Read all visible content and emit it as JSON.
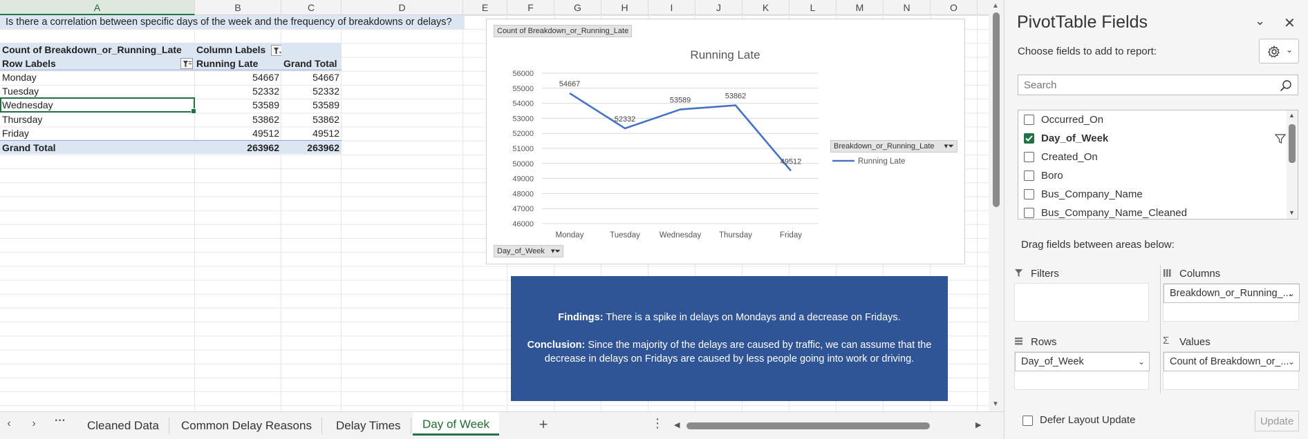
{
  "sheet": {
    "columns": [
      "A",
      "B",
      "C",
      "D",
      "E",
      "F",
      "G",
      "H",
      "I",
      "J",
      "K",
      "L",
      "M",
      "N",
      "O"
    ],
    "active_column": "A",
    "question": "Is there a correlation between specific days of the week and the frequency of breakdowns or delays?",
    "pivot_table": {
      "value_field": "Count of Breakdown_or_Running_Late",
      "column_labels": "Column Labels",
      "row_labels": "Row Labels",
      "col_running_late": "Running Late",
      "col_grand_total": "Grand Total",
      "rows": [
        {
          "label": "Monday",
          "running_late": "54667",
          "grand_total": "54667"
        },
        {
          "label": "Tuesday",
          "running_late": "52332",
          "grand_total": "52332"
        },
        {
          "label": "Wednesday",
          "running_late": "53589",
          "grand_total": "53589"
        },
        {
          "label": "Thursday",
          "running_late": "53862",
          "grand_total": "53862"
        },
        {
          "label": "Friday",
          "running_late": "49512",
          "grand_total": "49512"
        }
      ],
      "total_label": "Grand Total",
      "total_running_late": "263962",
      "total_grand_total": "263962"
    }
  },
  "chart": {
    "value_button": "Count of Breakdown_or_Running_Late",
    "axis_button": "Day_of_Week",
    "legend_button": "Breakdown_or_Running_Late",
    "line_color": "#4472c4"
  },
  "chart_data": {
    "type": "line",
    "title": "Running Late",
    "categories": [
      "Monday",
      "Tuesday",
      "Wednesday",
      "Thursday",
      "Friday"
    ],
    "series": [
      {
        "name": "Running Late",
        "values": [
          54667,
          52332,
          53589,
          53862,
          49512
        ]
      }
    ],
    "ylim": [
      46000,
      56000
    ],
    "yticks": [
      "56000",
      "55000",
      "54000",
      "53000",
      "52000",
      "51000",
      "50000",
      "49000",
      "48000",
      "47000",
      "46000"
    ],
    "data_labels": [
      "54667",
      "52332",
      "53589",
      "53862",
      "49512"
    ],
    "grid": true,
    "legend": "right"
  },
  "findings": {
    "findings_label": "Findings:",
    "findings_text": " There is a spike in delays on Mondays and a decrease on Fridays.",
    "conclusion_label": "Conclusion:",
    "conclusion_text": " Since the majority of the delays are caused by traffic, we can assume that the decrease in delays on Fridays are caused by less people going into work or driving.",
    "bg_color": "#2f5597"
  },
  "tabs": {
    "items": [
      "Cleaned Data",
      "Common Delay Reasons",
      "Delay Times",
      "Day of Week"
    ],
    "active": "Day of Week",
    "add_label": "+"
  },
  "pivot_panel": {
    "title": "PivotTable Fields",
    "subtitle": "Choose fields to add to report:",
    "search_placeholder": "Search",
    "fields": [
      {
        "name": "Occurred_On",
        "checked": false
      },
      {
        "name": "Day_of_Week",
        "checked": true
      },
      {
        "name": "Created_On",
        "checked": false
      },
      {
        "name": "Boro",
        "checked": false
      },
      {
        "name": "Bus_Company_Name",
        "checked": false
      },
      {
        "name": "Bus_Company_Name_Cleaned",
        "checked": false
      }
    ],
    "drag_label": "Drag fields between areas below:",
    "areas": {
      "filters": "Filters",
      "columns": "Columns",
      "rows": "Rows",
      "values": "Values",
      "columns_chip": "Breakdown_or_Running_...",
      "rows_chip": "Day_of_Week",
      "values_chip": "Count of Breakdown_or_..."
    },
    "defer_label": "Defer Layout Update",
    "update_label": "Update"
  }
}
